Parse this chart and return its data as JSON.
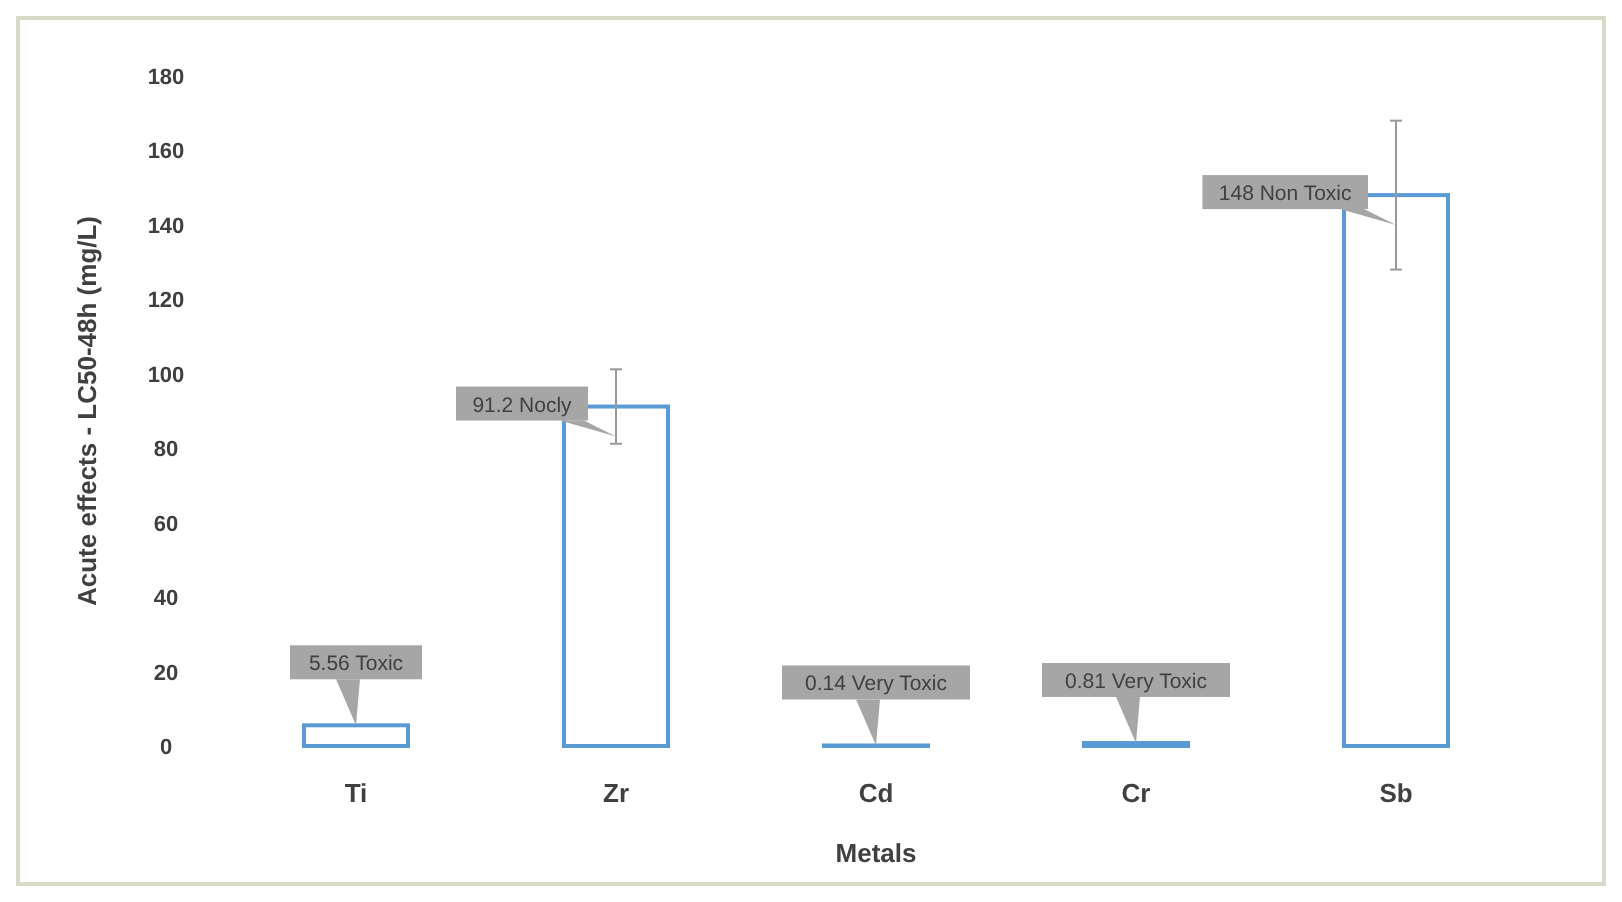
{
  "chart_data": {
    "type": "bar",
    "xlabel": "Metals",
    "ylabel": "Acute effects - LC50-48h (mg/L)",
    "categories": [
      "Ti",
      "Zr",
      "Cd",
      "Cr",
      "Sb"
    ],
    "values": [
      5.56,
      91.2,
      0.14,
      0.81,
      148
    ],
    "errors": [
      null,
      10,
      null,
      null,
      20
    ],
    "value_labels": [
      "5.56 Toxic",
      "91.2 Nocly",
      "0.14 Very Toxic",
      "0.81 Very Toxic",
      "148 Non Toxic"
    ],
    "color": "#5b9bd5",
    "ylim": [
      0,
      180
    ],
    "yticks": [
      0,
      20,
      40,
      60,
      80,
      100,
      120,
      140,
      160,
      180
    ],
    "grid": false
  }
}
